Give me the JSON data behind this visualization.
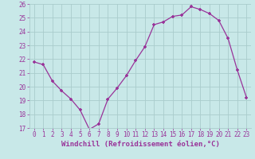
{
  "x": [
    0,
    1,
    2,
    3,
    4,
    5,
    6,
    7,
    8,
    9,
    10,
    11,
    12,
    13,
    14,
    15,
    16,
    17,
    18,
    19,
    20,
    21,
    22,
    23
  ],
  "y": [
    21.8,
    21.6,
    20.4,
    19.7,
    19.1,
    18.3,
    16.9,
    17.3,
    19.1,
    19.9,
    20.8,
    21.9,
    22.9,
    24.5,
    24.7,
    25.1,
    25.2,
    25.8,
    25.6,
    25.3,
    24.8,
    23.5,
    21.2,
    19.2
  ],
  "line_color": "#993399",
  "marker": "+",
  "background_color": "#c8e8e8",
  "grid_color": "#aacccc",
  "xlabel": "Windchill (Refroidissement éolien,°C)",
  "ylim": [
    17,
    26
  ],
  "xlim_min": -0.5,
  "xlim_max": 23.5,
  "yticks": [
    17,
    18,
    19,
    20,
    21,
    22,
    23,
    24,
    25,
    26
  ],
  "xticks": [
    0,
    1,
    2,
    3,
    4,
    5,
    6,
    7,
    8,
    9,
    10,
    11,
    12,
    13,
    14,
    15,
    16,
    17,
    18,
    19,
    20,
    21,
    22,
    23
  ],
  "tick_fontsize": 5.5,
  "xlabel_fontsize": 6.5,
  "marker_size": 3,
  "line_width": 0.9
}
